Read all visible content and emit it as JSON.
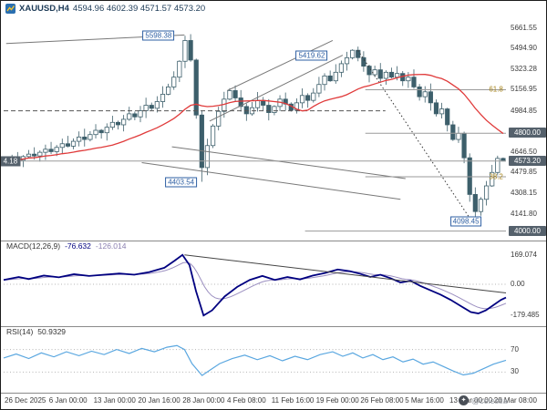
{
  "window": {
    "title_symbol": "XAUUSD,H4",
    "title_ohlc": "4594.96 4602.39 4571.57 4573.20",
    "watermark_text": "@celestia"
  },
  "colors": {
    "bull": "#ffffff",
    "bear": "#3d5f6b",
    "candle_stroke": "#3d5f6b",
    "ma": "#e03a3a",
    "macd_main": "#000080",
    "macd_signal": "#9b8fc0",
    "rsi": "#5aa7e0",
    "annotation_blue": "#2e5fa3",
    "axis_box_bg": "#55616c",
    "gold": "#a8861f",
    "trendline": "#787878"
  },
  "time_axis": {
    "labels": [
      "26 Dec 2025",
      "6 Jan 00:00",
      "13 Jan 00:00",
      "20 Jan 16:00",
      "28 Jan 00:00",
      "4 Feb 08:00",
      "11 Feb 16:00",
      "19 Feb 00:00",
      "26 Feb 08:00",
      "5 Mar 16:00",
      "13 Mar 00:00",
      "20 Mar 08:00"
    ]
  },
  "chart_data": [
    {
      "type": "candlestick",
      "name": "price",
      "symbol": "XAUUSD",
      "timeframe": "H4",
      "ylim": [
        3960,
        5720
      ],
      "first_open": 4560,
      "closes": [
        4575,
        4595,
        4580,
        4610,
        4630,
        4615,
        4645,
        4670,
        4650,
        4685,
        4715,
        4695,
        4735,
        4770,
        4750,
        4790,
        4825,
        4805,
        4850,
        4890,
        4870,
        4915,
        4960,
        4935,
        4985,
        5030,
        5005,
        5060,
        5120,
        5180,
        5260,
        5390,
        5560,
        5400,
        4950,
        4520,
        4700,
        4860,
        4980,
        5080,
        5150,
        5090,
        5020,
        4960,
        5010,
        5070,
        5030,
        4970,
        5020,
        5080,
        5040,
        4990,
        5050,
        5110,
        5070,
        5130,
        5200,
        5270,
        5230,
        5300,
        5370,
        5419,
        5480,
        5420,
        5350,
        5280,
        5320,
        5250,
        5300,
        5260,
        5290,
        5230,
        5260,
        5180,
        5100,
        5140,
        5050,
        4960,
        5000,
        4870,
        4750,
        4800,
        4600,
        4300,
        4160,
        4260,
        4370,
        4480,
        4595,
        4573.2
      ],
      "key_extremes": {
        "32": {
          "high": 5598.38
        },
        "35": {
          "low": 4403.54
        },
        "84": {
          "low": 4098.45
        }
      },
      "last_candle": {
        "open": 4594.96,
        "high": 4602.39,
        "low": 4571.57,
        "close": 4573.2
      },
      "ma": {
        "type": "sma",
        "period": 20
      },
      "y_axis": {
        "labels": [
          {
            "price": 5661.55,
            "text": "5661.55"
          },
          {
            "price": 5494.9,
            "text": "5494.90"
          },
          {
            "price": 5323.28,
            "text": "5323.28"
          },
          {
            "price": 5156.95,
            "text": "5156.95"
          },
          {
            "price": 4984.85,
            "text": "4984.85"
          },
          {
            "price": 4646.5,
            "text": "4646.50"
          },
          {
            "price": 4479.85,
            "text": "4479.85"
          },
          {
            "price": 4308.15,
            "text": "4308.15"
          },
          {
            "price": 4141.8,
            "text": "4141.80"
          }
        ],
        "boxes": [
          {
            "price": 4800.0,
            "text": "4800.00"
          },
          {
            "price": 4573.2,
            "text": "4573.20"
          },
          {
            "price": 4000.0,
            "text": "4000.00"
          }
        ]
      },
      "annotations": [
        {
          "text": "5598.38",
          "t": 0.34,
          "price": 5598.38,
          "style": "blue"
        },
        {
          "text": "5419.62",
          "t": 0.645,
          "price": 5435,
          "style": "blue"
        },
        {
          "text": "4403.54",
          "t": 0.385,
          "price": 4403.54,
          "style": "blue"
        },
        {
          "text": "4098.45",
          "t": 0.952,
          "price": 4080,
          "style": "blue"
        },
        {
          "text": "4.18",
          "t": 0.033,
          "price": 4573.18,
          "style": "dark"
        },
        {
          "text": "61.8",
          "t": 0.998,
          "price": 5157,
          "style": "gold"
        },
        {
          "text": "38.2",
          "t": 0.998,
          "price": 4444.6,
          "style": "gold"
        }
      ],
      "overlay_lines": [
        {
          "name": "resistance-top",
          "from": [
            0.005,
            5535
          ],
          "to": [
            0.36,
            5605
          ],
          "style": "solid"
        },
        {
          "name": "channel-mid-lower",
          "from": [
            0.275,
            4560
          ],
          "to": [
            0.79,
            4260
          ],
          "style": "solid"
        },
        {
          "name": "channel-mid-upper",
          "from": [
            0.335,
            4690
          ],
          "to": [
            0.8,
            4430
          ],
          "style": "solid"
        },
        {
          "name": "channel-asc-lower",
          "from": [
            0.41,
            4900
          ],
          "to": [
            0.675,
            5440
          ],
          "style": "solid"
        },
        {
          "name": "channel-asc-upper",
          "from": [
            0.445,
            5150
          ],
          "to": [
            0.655,
            5560
          ],
          "style": "solid"
        },
        {
          "name": "level-dashed",
          "from": [
            0.0,
            4984.85
          ],
          "to": [
            0.76,
            4984.85
          ],
          "style": "dashed"
        },
        {
          "name": "projection-dotted",
          "from": [
            0.705,
            5480
          ],
          "to": [
            0.928,
            4105
          ],
          "style": "dotted"
        },
        {
          "name": "fib-61-8",
          "from": [
            0.72,
            5157
          ],
          "to": [
            1.0,
            5157
          ],
          "style": "solid-light"
        },
        {
          "name": "fib-50",
          "from": [
            0.72,
            4800.55
          ],
          "to": [
            1.0,
            4800.55
          ],
          "style": "solid-light"
        },
        {
          "name": "fib-38-2",
          "from": [
            0.72,
            4444.6
          ],
          "to": [
            1.0,
            4444.6
          ],
          "style": "solid-light"
        },
        {
          "name": "fib-23-6",
          "from": [
            0.6,
            4000
          ],
          "to": [
            1.0,
            4000
          ],
          "style": "solid-light"
        },
        {
          "name": "bid-line",
          "from": [
            0.0,
            4573.18
          ],
          "to": [
            1.0,
            4573.18
          ],
          "style": "solid-light"
        }
      ]
    },
    {
      "type": "line",
      "name": "macd",
      "label": "MACD(12,26,9)",
      "value_main": "-76.632",
      "value_signal": "-126.014",
      "ylim": [
        -215,
        215
      ],
      "axis_labels": [
        {
          "v": 169.074,
          "text": "169.074"
        },
        {
          "v": 0,
          "text": "0.00"
        },
        {
          "v": -179.485,
          "text": "-179.485"
        }
      ],
      "points": [
        [
          0.0,
          25
        ],
        [
          0.03,
          42
        ],
        [
          0.05,
          30
        ],
        [
          0.08,
          50
        ],
        [
          0.11,
          40
        ],
        [
          0.14,
          58
        ],
        [
          0.17,
          48
        ],
        [
          0.2,
          55
        ],
        [
          0.23,
          62
        ],
        [
          0.26,
          55
        ],
        [
          0.29,
          70
        ],
        [
          0.32,
          95
        ],
        [
          0.34,
          135
        ],
        [
          0.356,
          169.074
        ],
        [
          0.37,
          110
        ],
        [
          0.383,
          -40
        ],
        [
          0.398,
          -179.485
        ],
        [
          0.415,
          -150
        ],
        [
          0.44,
          -70
        ],
        [
          0.465,
          -15
        ],
        [
          0.49,
          25
        ],
        [
          0.515,
          48
        ],
        [
          0.54,
          25
        ],
        [
          0.565,
          42
        ],
        [
          0.59,
          28
        ],
        [
          0.615,
          50
        ],
        [
          0.64,
          65
        ],
        [
          0.665,
          85
        ],
        [
          0.69,
          75
        ],
        [
          0.71,
          60
        ],
        [
          0.73,
          42
        ],
        [
          0.75,
          55
        ],
        [
          0.77,
          35
        ],
        [
          0.79,
          10
        ],
        [
          0.81,
          20
        ],
        [
          0.83,
          -10
        ],
        [
          0.85,
          -35
        ],
        [
          0.87,
          -60
        ],
        [
          0.89,
          -90
        ],
        [
          0.91,
          -125
        ],
        [
          0.93,
          -160
        ],
        [
          0.945,
          -168
        ],
        [
          0.96,
          -150
        ],
        [
          0.975,
          -120
        ],
        [
          0.99,
          -90
        ],
        [
          1.0,
          -76.632
        ]
      ],
      "trendline": [
        [
          0.36,
          169.074
        ],
        [
          1.0,
          -50
        ]
      ]
    },
    {
      "type": "line",
      "name": "rsi",
      "label": "RSI(14)",
      "value": "50.9329",
      "ylim": [
        0,
        100
      ],
      "levels": [
        70,
        30
      ],
      "points": [
        [
          0.0,
          55
        ],
        [
          0.025,
          62
        ],
        [
          0.05,
          54
        ],
        [
          0.075,
          64
        ],
        [
          0.1,
          57
        ],
        [
          0.125,
          66
        ],
        [
          0.15,
          59
        ],
        [
          0.175,
          67
        ],
        [
          0.2,
          61
        ],
        [
          0.225,
          70
        ],
        [
          0.25,
          63
        ],
        [
          0.275,
          72
        ],
        [
          0.3,
          66
        ],
        [
          0.325,
          74
        ],
        [
          0.345,
          77
        ],
        [
          0.36,
          70
        ],
        [
          0.375,
          45
        ],
        [
          0.395,
          24
        ],
        [
          0.41,
          33
        ],
        [
          0.43,
          45
        ],
        [
          0.455,
          54
        ],
        [
          0.48,
          60
        ],
        [
          0.505,
          52
        ],
        [
          0.53,
          59
        ],
        [
          0.555,
          50
        ],
        [
          0.58,
          58
        ],
        [
          0.605,
          52
        ],
        [
          0.63,
          61
        ],
        [
          0.655,
          66
        ],
        [
          0.675,
          58
        ],
        [
          0.695,
          64
        ],
        [
          0.715,
          55
        ],
        [
          0.735,
          61
        ],
        [
          0.755,
          52
        ],
        [
          0.775,
          57
        ],
        [
          0.795,
          48
        ],
        [
          0.815,
          53
        ],
        [
          0.835,
          44
        ],
        [
          0.855,
          48
        ],
        [
          0.875,
          40
        ],
        [
          0.895,
          32
        ],
        [
          0.915,
          25
        ],
        [
          0.935,
          28
        ],
        [
          0.955,
          36
        ],
        [
          0.975,
          44
        ],
        [
          1.0,
          50.93
        ]
      ]
    }
  ]
}
